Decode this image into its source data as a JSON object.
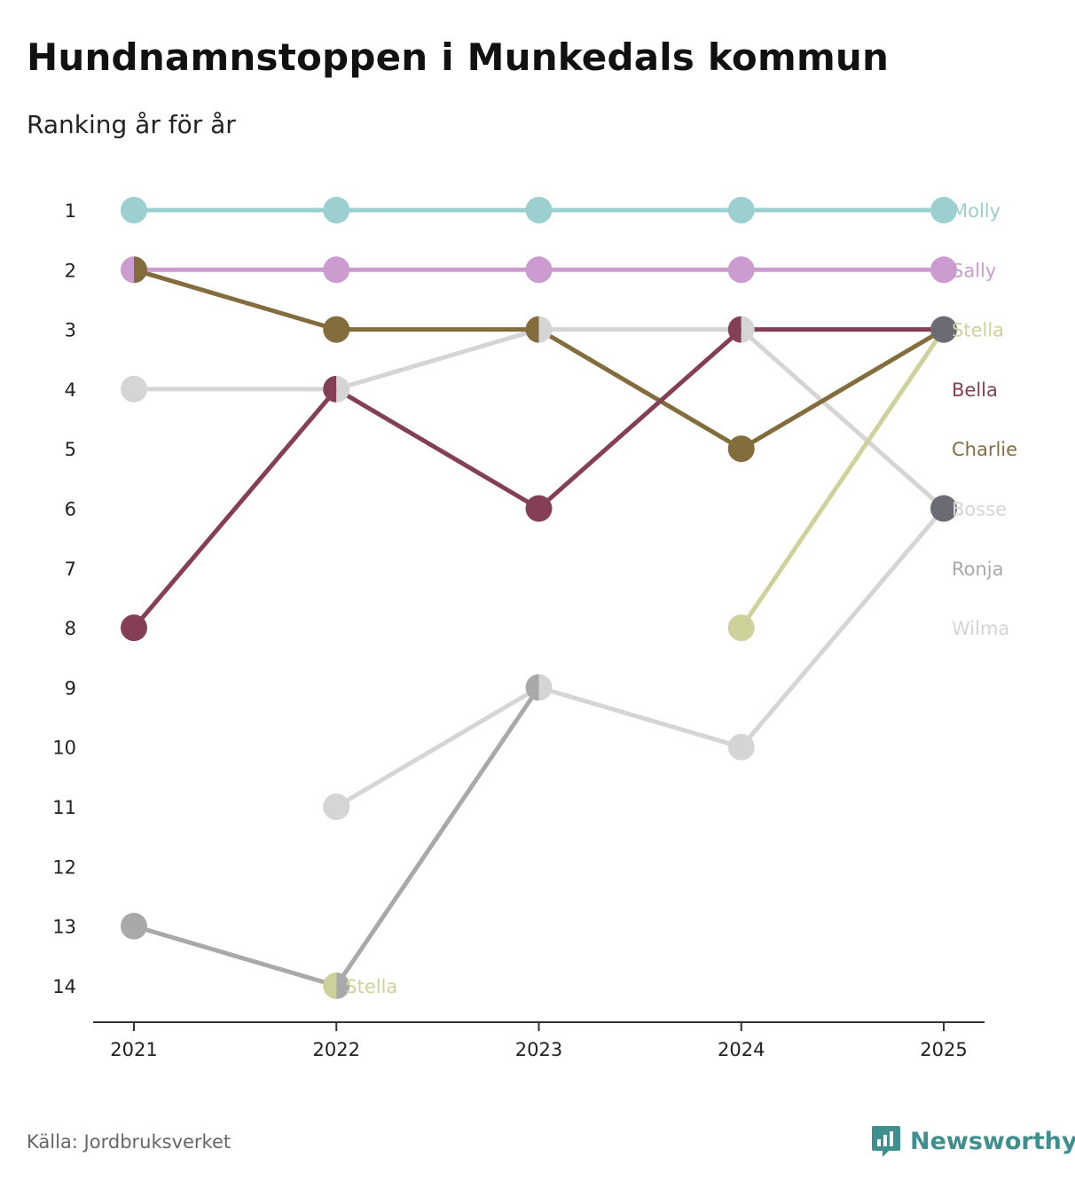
{
  "title": "Hundnamnstoppen i Munkedals kommun",
  "subtitle": "Ranking år för år",
  "source": "Källa: Jordbruksverket",
  "brand": {
    "name": "Newsworthy",
    "icon": "newsworthy-logo-icon",
    "color": "#3f8f8f"
  },
  "chart_data": {
    "type": "line",
    "chart_kind": "bump",
    "x": [
      "2021",
      "2022",
      "2023",
      "2024",
      "2025"
    ],
    "y_ticks": [
      "1",
      "2",
      "3",
      "4",
      "5",
      "6",
      "7",
      "8",
      "9",
      "10",
      "11",
      "12",
      "13",
      "14"
    ],
    "ylim": [
      1,
      14
    ],
    "y_inverted": true,
    "xlabel": "",
    "ylabel": "",
    "series": [
      {
        "name": "Wilma",
        "color": "#d5d5d5",
        "values": [
          null,
          11,
          9,
          10,
          6
        ]
      },
      {
        "name": "Ronja",
        "color": "#a9a9a9",
        "values": [
          13,
          14,
          9,
          null,
          null
        ]
      },
      {
        "name": "Bosse",
        "color": "#d5d5d5",
        "values": [
          4,
          4,
          3,
          3,
          6
        ]
      },
      {
        "name": "Stella",
        "color": "#cfd19a",
        "values": [
          null,
          14,
          null,
          8,
          3
        ]
      },
      {
        "name": "Charlie",
        "color": "#836d3d",
        "values": [
          2,
          3,
          3,
          5,
          3
        ]
      },
      {
        "name": "Bella",
        "color": "#843f56",
        "values": [
          8,
          4,
          6,
          3,
          3
        ]
      },
      {
        "name": "Sally",
        "color": "#cc9bcf",
        "values": [
          2,
          2,
          2,
          2,
          2
        ]
      },
      {
        "name": "Molly",
        "color": "#9ccfcf",
        "values": [
          1,
          1,
          1,
          1,
          1
        ]
      }
    ],
    "end_labels": [
      "Molly",
      "Sally",
      "Stella",
      "Bella",
      "Charlie",
      "Bosse",
      "Ronja",
      "Wilma"
    ],
    "inline_labels": [
      {
        "text": "Stella",
        "x": "2022",
        "y": 14
      }
    ],
    "tie_color": "#6b6b73"
  }
}
